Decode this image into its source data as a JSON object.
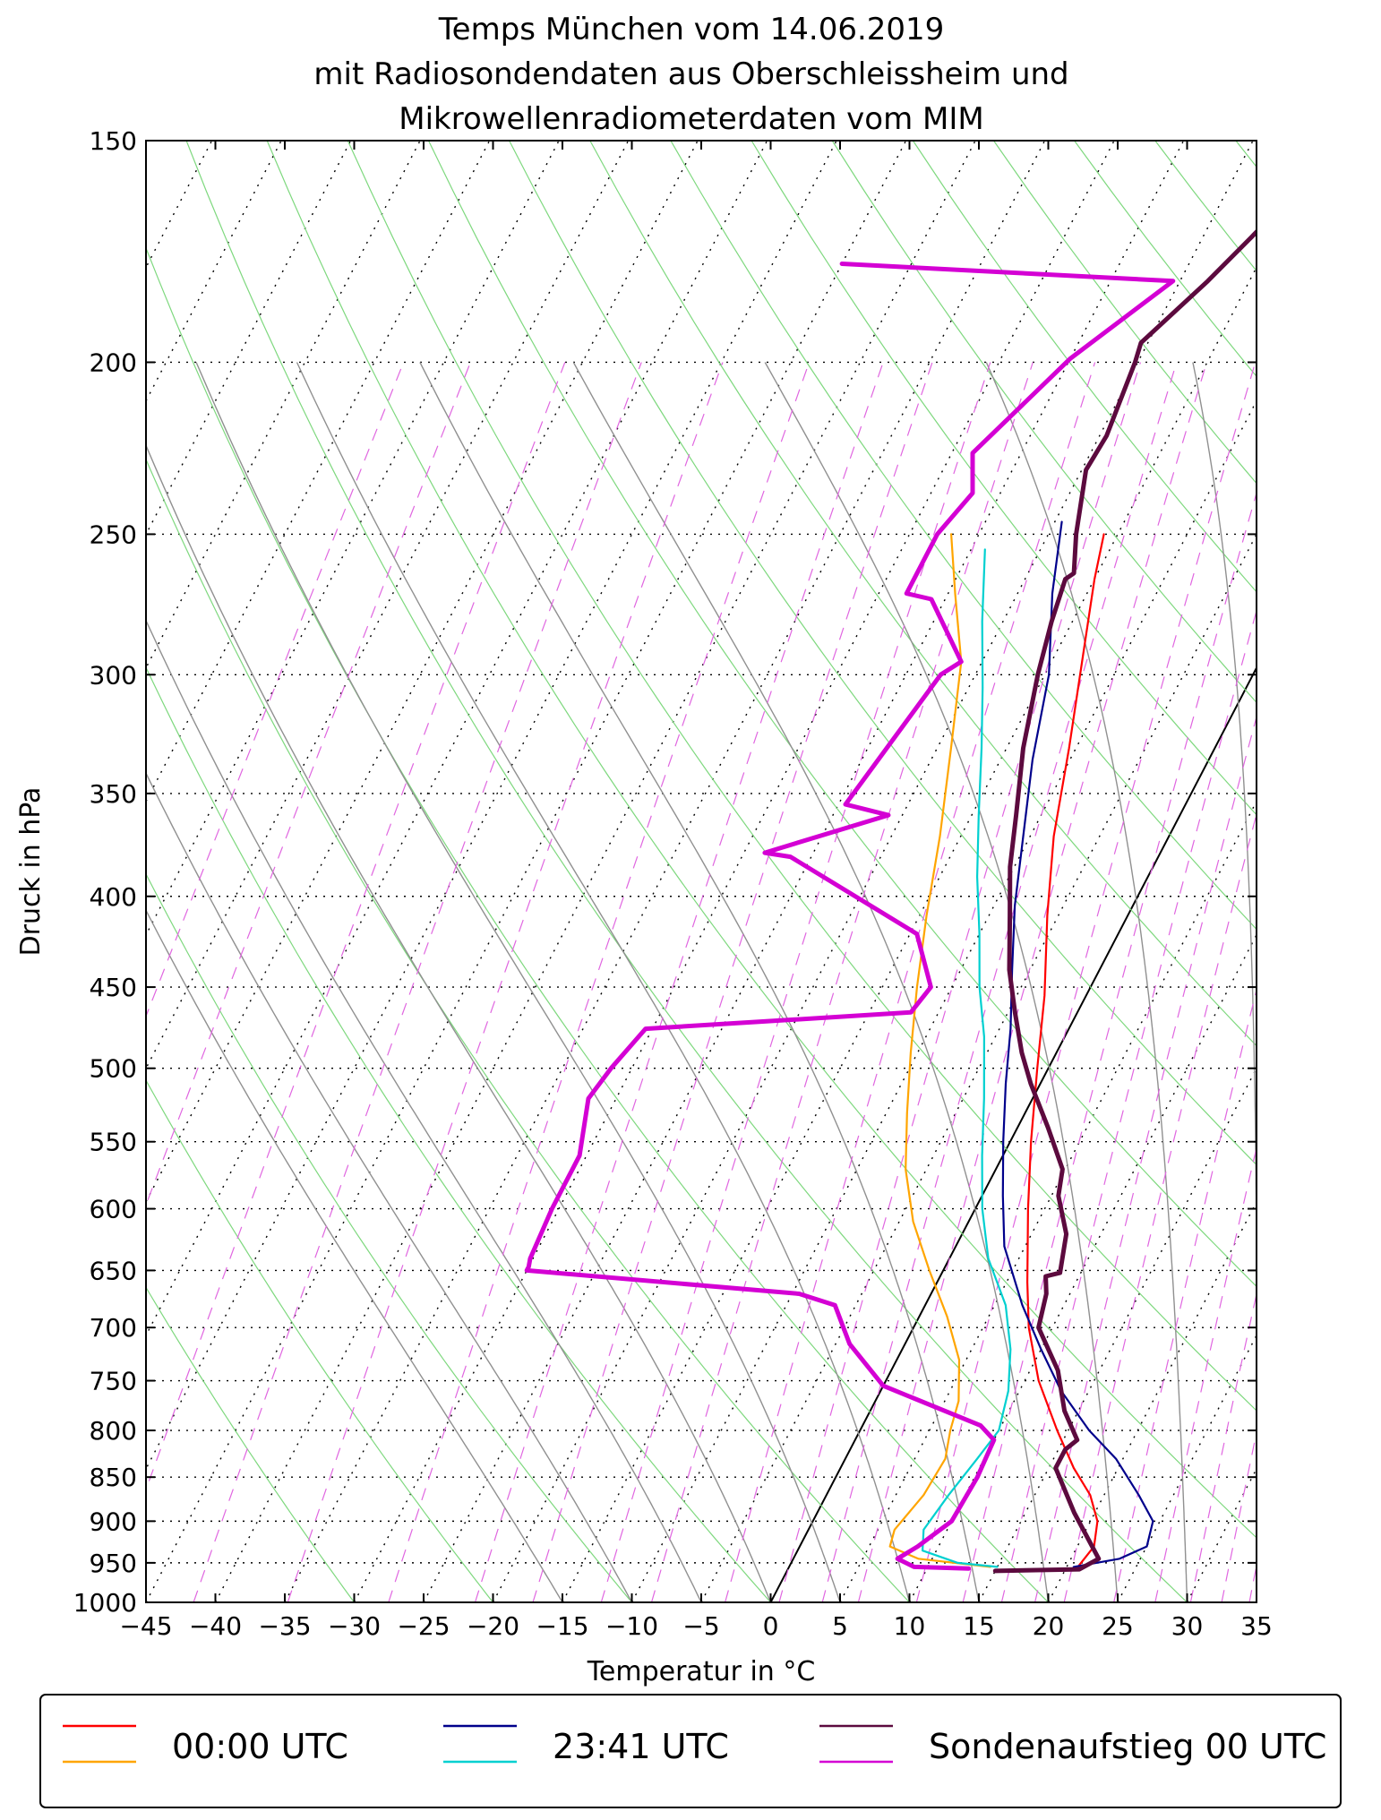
{
  "chart_data": {
    "type": "line",
    "subtype": "skew-T log-p diagram",
    "title": [
      "Temps München vom 14.06.2019",
      "mit Radiosondendaten aus Oberschleissheim und",
      "Mikrowellenradiometerdaten vom MIM"
    ],
    "xlabel": "Temperatur in °C",
    "ylabel": "Druck in hPa",
    "xlim": [
      -45,
      35
    ],
    "ylim": [
      1000,
      150
    ],
    "y_scale": "log",
    "x_ticks": [
      "−45",
      "−40",
      "−35",
      "−30",
      "−25",
      "−20",
      "−15",
      "−10",
      "−5",
      "0",
      "5",
      "10",
      "15",
      "20",
      "25",
      "30",
      "35"
    ],
    "y_ticks": [
      "150",
      "200",
      "250",
      "300",
      "350",
      "400",
      "450",
      "500",
      "550",
      "600",
      "650",
      "700",
      "750",
      "800",
      "850",
      "900",
      "950",
      "1000"
    ],
    "grid": true,
    "legend": {
      "placement": "bottom",
      "entries": [
        {
          "label": "00:00 UTC",
          "colors": [
            "#ff0000",
            "#ffa500"
          ]
        },
        {
          "label": "23:41 UTC",
          "colors": [
            "#00008b",
            "#00d0d0"
          ]
        },
        {
          "label": "Sondenaufstieg 00 UTC",
          "colors": [
            "#5c0a3e",
            "#d400d4"
          ]
        }
      ]
    },
    "series": [
      {
        "group": "00:00 UTC",
        "variable": "temperature",
        "color": "#ff0000",
        "points": [
          [
            20.8,
            955
          ],
          [
            21.2,
            930
          ],
          [
            20.5,
            900
          ],
          [
            19,
            870
          ],
          [
            16.8,
            840
          ],
          [
            14.2,
            800
          ],
          [
            11,
            750
          ],
          [
            8.3,
            700
          ],
          [
            6.5,
            660
          ],
          [
            3.8,
            600
          ],
          [
            1.5,
            550
          ],
          [
            -0.8,
            500
          ],
          [
            -3,
            455
          ],
          [
            -5.8,
            410
          ],
          [
            -8.3,
            370
          ],
          [
            -10.5,
            330
          ],
          [
            -12.8,
            295
          ],
          [
            -15,
            265
          ],
          [
            -16,
            250
          ]
        ]
      },
      {
        "group": "00:00 UTC",
        "variable": "dewpoint",
        "color": "#ffa500",
        "points": [
          [
            14.5,
            955
          ],
          [
            9,
            945
          ],
          [
            6.5,
            930
          ],
          [
            6.2,
            910
          ],
          [
            7,
            870
          ],
          [
            7.2,
            830
          ],
          [
            6.5,
            800
          ],
          [
            6,
            770
          ],
          [
            4.5,
            730
          ],
          [
            2,
            690
          ],
          [
            -1,
            650
          ],
          [
            -4,
            610
          ],
          [
            -6.5,
            570
          ],
          [
            -8.5,
            530
          ],
          [
            -10.5,
            490
          ],
          [
            -12.5,
            450
          ],
          [
            -14.5,
            410
          ],
          [
            -16.5,
            370
          ],
          [
            -19,
            330
          ],
          [
            -21.5,
            295
          ],
          [
            -24.5,
            270
          ],
          [
            -27,
            250
          ]
        ]
      },
      {
        "group": "23:41 UTC",
        "variable": "temperature",
        "color": "#00008b",
        "points": [
          [
            20.5,
            955
          ],
          [
            23.5,
            945
          ],
          [
            25,
            930
          ],
          [
            24.5,
            900
          ],
          [
            22.5,
            870
          ],
          [
            19.5,
            830
          ],
          [
            16.5,
            800
          ],
          [
            13,
            760
          ],
          [
            10,
            720
          ],
          [
            7,
            680
          ],
          [
            3.5,
            630
          ],
          [
            1.5,
            590
          ],
          [
            -0.5,
            550
          ],
          [
            -2.5,
            510
          ],
          [
            -4.2,
            475
          ],
          [
            -6.3,
            440
          ],
          [
            -8.5,
            405
          ],
          [
            -10.5,
            370
          ],
          [
            -12.7,
            335
          ],
          [
            -14.7,
            300
          ],
          [
            -17.5,
            270
          ],
          [
            -19.5,
            246
          ]
        ]
      },
      {
        "group": "23:41 UTC",
        "variable": "dewpoint",
        "color": "#00d0d0",
        "points": [
          [
            15,
            955
          ],
          [
            12,
            950
          ],
          [
            9,
            935
          ],
          [
            8.3,
            910
          ],
          [
            8.8,
            870
          ],
          [
            9.5,
            830
          ],
          [
            10,
            800
          ],
          [
            9.2,
            760
          ],
          [
            7.8,
            720
          ],
          [
            5.8,
            680
          ],
          [
            2.8,
            640
          ],
          [
            0.5,
            600
          ],
          [
            -1.5,
            560
          ],
          [
            -3.5,
            520
          ],
          [
            -5.8,
            480
          ],
          [
            -8,
            450
          ],
          [
            -10,
            420
          ],
          [
            -12.3,
            390
          ],
          [
            -14.5,
            360
          ],
          [
            -16.8,
            330
          ],
          [
            -19,
            305
          ],
          [
            -21.5,
            280
          ],
          [
            -24,
            255
          ]
        ]
      },
      {
        "group": "Sondenaufstieg 00 UTC",
        "variable": "temperature",
        "color": "#5c0a3e",
        "points": [
          [
            15,
            960
          ],
          [
            21,
            958
          ],
          [
            22,
            945
          ],
          [
            18.5,
            890
          ],
          [
            15.5,
            840
          ],
          [
            15.5,
            820
          ],
          [
            16,
            810
          ],
          [
            14,
            780
          ],
          [
            12,
            740
          ],
          [
            9,
            700
          ],
          [
            8.3,
            670
          ],
          [
            7.6,
            655
          ],
          [
            8.5,
            652
          ],
          [
            7.5,
            620
          ],
          [
            5.5,
            590
          ],
          [
            4.8,
            570
          ],
          [
            2.2,
            540
          ],
          [
            -0.7,
            510
          ],
          [
            -2.5,
            490
          ],
          [
            -4.5,
            465
          ],
          [
            -6.5,
            440
          ],
          [
            -8.5,
            410
          ],
          [
            -10.3,
            385
          ],
          [
            -11.8,
            360
          ],
          [
            -13.8,
            330
          ],
          [
            -15.5,
            300
          ],
          [
            -16.5,
            280
          ],
          [
            -17.1,
            265
          ],
          [
            -16.7,
            263
          ],
          [
            -18,
            250
          ],
          [
            -19.7,
            230
          ],
          [
            -19.5,
            220
          ],
          [
            -20.2,
            200
          ],
          [
            -20.5,
            195
          ],
          [
            -18,
            180
          ],
          [
            -16.5,
            170
          ],
          [
            -15.3,
            162
          ],
          [
            -13.8,
            152
          ],
          [
            -13.3,
            150
          ]
        ]
      },
      {
        "group": "Sondenaufstieg 00 UTC",
        "variable": "dewpoint",
        "color": "#d400d4",
        "points": [
          [
            13,
            957
          ],
          [
            9,
            955
          ],
          [
            7.5,
            945
          ],
          [
            8.5,
            930
          ],
          [
            10,
            900
          ],
          [
            10.2,
            850
          ],
          [
            10,
            810
          ],
          [
            8.5,
            795
          ],
          [
            0,
            755
          ],
          [
            -4,
            715
          ],
          [
            -6.5,
            680
          ],
          [
            -9.5,
            670
          ],
          [
            -30,
            650
          ],
          [
            -30,
            647
          ],
          [
            -30.2,
            640
          ],
          [
            -30.5,
            600
          ],
          [
            -30.5,
            560
          ],
          [
            -32,
            520
          ],
          [
            -31.5,
            500
          ],
          [
            -30.5,
            475
          ],
          [
            -12,
            465
          ],
          [
            -11.5,
            450
          ],
          [
            -14.5,
            420
          ],
          [
            -26.5,
            380
          ],
          [
            -28.5,
            378
          ],
          [
            -21,
            360
          ],
          [
            -24.5,
            355
          ],
          [
            -22.5,
            300
          ],
          [
            -21.5,
            295
          ],
          [
            -26,
            272
          ],
          [
            -28,
            270
          ],
          [
            -28,
            250
          ],
          [
            -27,
            237
          ],
          [
            -28.5,
            225
          ],
          [
            -25,
            199
          ],
          [
            -20.5,
            180
          ],
          [
            -45,
            176
          ]
        ]
      }
    ]
  }
}
